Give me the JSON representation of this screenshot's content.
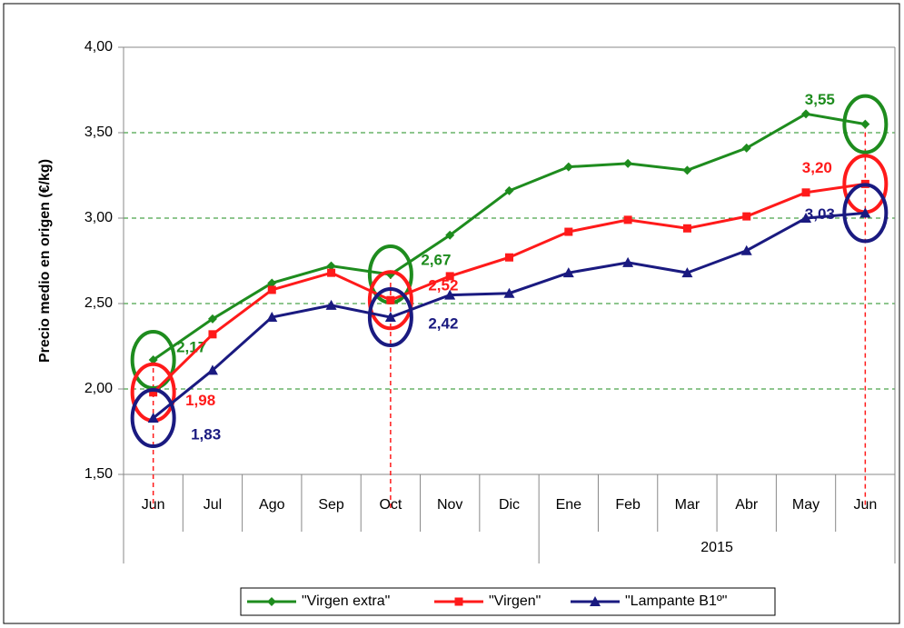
{
  "chart_data": {
    "type": "line",
    "y_label": "Precio medio en origen (€/kg)",
    "category_groups": [
      {
        "label": null,
        "categories": [
          "Jun",
          "Jul",
          "Ago",
          "Sep",
          "Oct",
          "Nov",
          "Dic"
        ]
      },
      {
        "label": "2015",
        "categories": [
          "Ene",
          "Feb",
          "Mar",
          "Abr",
          "May",
          "Jun"
        ]
      }
    ],
    "series": [
      {
        "name": "\"Virgen extra\"",
        "color": "#1e8c1e",
        "marker": "diamond",
        "values": [
          2.17,
          2.41,
          2.62,
          2.72,
          2.67,
          2.9,
          3.16,
          3.3,
          3.32,
          3.28,
          3.41,
          3.61,
          3.55
        ],
        "value_labels": [
          "2,17",
          null,
          null,
          null,
          "2,67",
          null,
          null,
          null,
          null,
          null,
          null,
          null,
          "3,55"
        ]
      },
      {
        "name": "\"Virgen\"",
        "color": "#ff1a1a",
        "marker": "square",
        "values": [
          1.98,
          2.32,
          2.58,
          2.68,
          2.52,
          2.66,
          2.77,
          2.92,
          2.99,
          2.94,
          3.01,
          3.15,
          3.2
        ],
        "value_labels": [
          "1,98",
          null,
          null,
          null,
          "2,52",
          null,
          null,
          null,
          null,
          null,
          null,
          null,
          "3,20"
        ]
      },
      {
        "name": "\"Lampante B1º\"",
        "color": "#1a1a80",
        "marker": "triangle",
        "values": [
          1.83,
          2.11,
          2.42,
          2.49,
          2.42,
          2.55,
          2.56,
          2.68,
          2.74,
          2.68,
          2.81,
          3.0,
          3.03
        ],
        "value_labels": [
          "1,83",
          null,
          null,
          null,
          "2,42",
          null,
          null,
          null,
          null,
          null,
          null,
          null,
          "3,03"
        ]
      }
    ],
    "ylim": [
      1.5,
      4.0
    ],
    "yticks": [
      {
        "value": 1.5,
        "label": "1,50"
      },
      {
        "value": 2.0,
        "label": "2,00"
      },
      {
        "value": 2.5,
        "label": "2,50"
      },
      {
        "value": 3.0,
        "label": "3,00"
      },
      {
        "value": 3.5,
        "label": "3,50"
      },
      {
        "value": 4.0,
        "label": "4,00"
      }
    ],
    "grid": true,
    "legend": "bottom"
  }
}
